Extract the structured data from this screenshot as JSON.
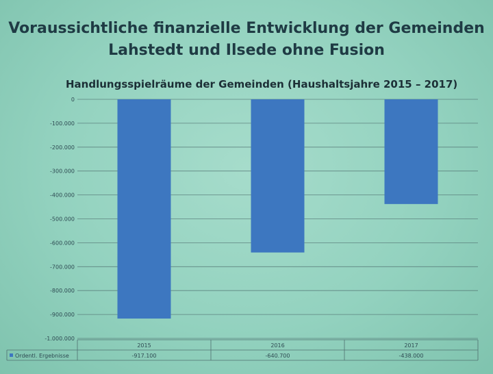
{
  "header": {
    "title_line1": "Voraussichtliche finanzielle Entwicklung der Gemeinden",
    "title_line2": "Lahstedt und Ilsede ohne Fusion"
  },
  "chart_data": {
    "type": "bar",
    "title": "Handlungsspielräume der Gemeinden (Haushaltsjahre 2015 – 2017)",
    "categories": [
      "2015",
      "2016",
      "2017"
    ],
    "series": [
      {
        "name": "Ordentl. Ergebnisse",
        "values": [
          -917100,
          -640700,
          -438000
        ],
        "labels": [
          "-917.100",
          "-640.700",
          "-438.000"
        ]
      }
    ],
    "ylim": [
      -1000000,
      0
    ],
    "yticks": [
      0,
      -100000,
      -200000,
      -300000,
      -400000,
      -500000,
      -600000,
      -700000,
      -800000,
      -900000,
      -1000000
    ],
    "ytick_labels": [
      "0",
      "-100.000",
      "-200.000",
      "-300.000",
      "-400.000",
      "-500.000",
      "-600.000",
      "-700.000",
      "-800.000",
      "-900.000",
      "-1.000.000"
    ],
    "grid": true,
    "legend": "data-table",
    "colors": {
      "bar": "#3d77c0",
      "grid": "#4f6f6f"
    }
  }
}
